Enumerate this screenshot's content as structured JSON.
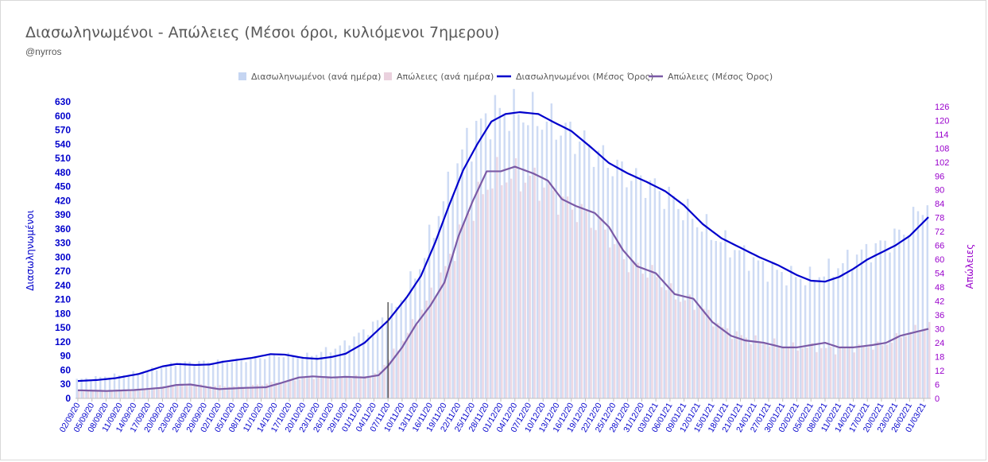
{
  "chart_data": {
    "type": "bar+line",
    "title": "Διασωληνωμένοι - Απώλειες (Μέσοι όροι, κυλιόμενοι 7ημερου)",
    "subtitle": "@nyrros",
    "ylabel_left": "Διασωληνωμένοι",
    "ylabel_right": "Απώλειες",
    "ylim_left": [
      0,
      630
    ],
    "ylim_right": [
      0,
      128
    ],
    "yticks_left": [
      0,
      30,
      60,
      90,
      120,
      150,
      180,
      210,
      240,
      270,
      300,
      330,
      360,
      390,
      420,
      450,
      480,
      510,
      540,
      570,
      600,
      630
    ],
    "yticks_right": [
      0,
      6,
      12,
      18,
      24,
      30,
      36,
      42,
      48,
      54,
      60,
      66,
      72,
      78,
      84,
      90,
      96,
      102,
      108,
      114,
      120,
      126
    ],
    "x_start": "02/09/20",
    "x_end": "02/03/21",
    "xtick_labels": [
      "02/09/20",
      "05/09/20",
      "08/09/20",
      "11/09/20",
      "14/09/20",
      "17/09/20",
      "20/09/20",
      "23/09/20",
      "26/09/20",
      "29/09/20",
      "02/10/20",
      "05/10/20",
      "08/10/20",
      "11/10/20",
      "14/10/20",
      "17/10/20",
      "20/10/20",
      "23/10/20",
      "26/10/20",
      "29/10/20",
      "01/11/20",
      "04/11/20",
      "07/11/20",
      "10/11/20",
      "13/11/20",
      "16/11/20",
      "19/11/20",
      "22/11/20",
      "25/11/20",
      "28/11/20",
      "01/12/20",
      "04/12/20",
      "07/12/20",
      "10/12/20",
      "13/12/20",
      "16/12/20",
      "19/12/20",
      "22/12/20",
      "25/12/20",
      "28/12/20",
      "31/12/20",
      "03/01/21",
      "06/01/21",
      "09/01/21",
      "12/01/21",
      "15/01/21",
      "18/01/21",
      "21/01/21",
      "24/01/21",
      "27/01/21",
      "30/01/21",
      "02/02/21",
      "05/02/21",
      "08/02/21",
      "11/02/21",
      "14/02/21",
      "17/02/21",
      "20/02/21",
      "23/02/21",
      "26/02/21",
      "01/03/21"
    ],
    "marker_date": "07/11/20",
    "series": [
      {
        "name": "Διασωληνωμένοι (ανά ημέρα)",
        "kind": "bar",
        "axis": "left",
        "color": "#c5d5f2",
        "anchors": [
          [
            "02/09/20",
            40
          ],
          [
            "16/09/20",
            55
          ],
          [
            "23/09/20",
            75
          ],
          [
            "07/10/20",
            80
          ],
          [
            "14/10/20",
            92
          ],
          [
            "21/10/20",
            90
          ],
          [
            "28/10/20",
            110
          ],
          [
            "04/11/20",
            155
          ],
          [
            "09/11/20",
            195
          ],
          [
            "14/11/20",
            280
          ],
          [
            "19/11/20",
            420
          ],
          [
            "24/11/20",
            545
          ],
          [
            "29/11/20",
            605
          ],
          [
            "03/12/20",
            610
          ],
          [
            "08/12/20",
            600
          ],
          [
            "13/12/20",
            580
          ],
          [
            "18/12/20",
            550
          ],
          [
            "23/12/20",
            510
          ],
          [
            "28/12/20",
            475
          ],
          [
            "02/01/21",
            455
          ],
          [
            "07/01/21",
            420
          ],
          [
            "12/01/21",
            375
          ],
          [
            "17/01/21",
            335
          ],
          [
            "22/01/21",
            305
          ],
          [
            "27/01/21",
            275
          ],
          [
            "01/02/21",
            260
          ],
          [
            "05/02/21",
            255
          ],
          [
            "10/02/21",
            275
          ],
          [
            "15/02/21",
            305
          ],
          [
            "20/02/21",
            325
          ],
          [
            "25/02/21",
            355
          ],
          [
            "02/03/21",
            420
          ]
        ]
      },
      {
        "name": "Απώλειες (ανά ημέρα)",
        "kind": "bar",
        "axis": "right",
        "color": "#ead1de",
        "anchors": [
          [
            "02/09/20",
            3
          ],
          [
            "16/09/20",
            4
          ],
          [
            "23/09/20",
            6
          ],
          [
            "07/10/20",
            5
          ],
          [
            "14/10/20",
            7
          ],
          [
            "21/10/20",
            9
          ],
          [
            "28/10/20",
            9
          ],
          [
            "04/11/20",
            10
          ],
          [
            "09/11/20",
            22
          ],
          [
            "14/11/20",
            38
          ],
          [
            "19/11/20",
            56
          ],
          [
            "24/11/20",
            80
          ],
          [
            "29/11/20",
            95
          ],
          [
            "03/12/20",
            96
          ],
          [
            "08/12/20",
            94
          ],
          [
            "13/12/20",
            86
          ],
          [
            "18/12/20",
            80
          ],
          [
            "23/12/20",
            72
          ],
          [
            "28/12/20",
            58
          ],
          [
            "02/01/21",
            54
          ],
          [
            "07/01/21",
            44
          ],
          [
            "12/01/21",
            40
          ],
          [
            "17/01/21",
            30
          ],
          [
            "22/01/21",
            26
          ],
          [
            "27/01/21",
            24
          ],
          [
            "01/02/21",
            22
          ],
          [
            "05/02/21",
            22
          ],
          [
            "10/02/21",
            21
          ],
          [
            "15/02/21",
            22
          ],
          [
            "20/02/21",
            23
          ],
          [
            "25/02/21",
            28
          ],
          [
            "02/03/21",
            32
          ]
        ]
      },
      {
        "name": "Διασωληνωμένοι (Μέσος Όρος)",
        "kind": "line",
        "axis": "left",
        "color": "#0000cc",
        "anchors": [
          [
            "02/09/20",
            37
          ],
          [
            "06/09/20",
            39
          ],
          [
            "10/09/20",
            43
          ],
          [
            "15/09/20",
            52
          ],
          [
            "20/09/20",
            68
          ],
          [
            "23/09/20",
            73
          ],
          [
            "27/09/20",
            71
          ],
          [
            "30/09/20",
            72
          ],
          [
            "03/10/20",
            78
          ],
          [
            "09/10/20",
            86
          ],
          [
            "13/10/20",
            94
          ],
          [
            "16/10/20",
            93
          ],
          [
            "20/10/20",
            86
          ],
          [
            "23/10/20",
            84
          ],
          [
            "26/10/20",
            88
          ],
          [
            "29/10/20",
            95
          ],
          [
            "02/11/20",
            118
          ],
          [
            "07/11/20",
            165
          ],
          [
            "11/11/20",
            215
          ],
          [
            "14/11/20",
            260
          ],
          [
            "17/11/20",
            330
          ],
          [
            "20/11/20",
            410
          ],
          [
            "23/11/20",
            485
          ],
          [
            "26/11/20",
            540
          ],
          [
            "29/11/20",
            588
          ],
          [
            "02/12/20",
            604
          ],
          [
            "05/12/20",
            608
          ],
          [
            "09/12/20",
            604
          ],
          [
            "12/12/20",
            588
          ],
          [
            "16/12/20",
            568
          ],
          [
            "20/12/20",
            535
          ],
          [
            "24/12/20",
            500
          ],
          [
            "28/12/20",
            478
          ],
          [
            "01/01/21",
            460
          ],
          [
            "05/01/21",
            440
          ],
          [
            "09/01/21",
            410
          ],
          [
            "13/01/21",
            370
          ],
          [
            "17/01/21",
            340
          ],
          [
            "21/01/21",
            320
          ],
          [
            "25/01/21",
            300
          ],
          [
            "29/01/21",
            283
          ],
          [
            "02/02/21",
            262
          ],
          [
            "05/02/21",
            250
          ],
          [
            "08/02/21",
            248
          ],
          [
            "11/02/21",
            258
          ],
          [
            "14/02/21",
            275
          ],
          [
            "17/02/21",
            295
          ],
          [
            "20/02/21",
            310
          ],
          [
            "23/02/21",
            325
          ],
          [
            "26/02/21",
            345
          ],
          [
            "02/03/21",
            385
          ]
        ]
      },
      {
        "name": "Απώλειες (Μέσος Όρος)",
        "kind": "line",
        "axis": "right",
        "color": "#7b5aa6",
        "anchors": [
          [
            "02/09/20",
            3.5
          ],
          [
            "08/09/20",
            3.2
          ],
          [
            "14/09/20",
            3.6
          ],
          [
            "20/09/20",
            4.6
          ],
          [
            "23/09/20",
            5.8
          ],
          [
            "26/09/20",
            6
          ],
          [
            "29/09/20",
            5
          ],
          [
            "02/10/20",
            4
          ],
          [
            "07/10/20",
            4.5
          ],
          [
            "12/10/20",
            4.8
          ],
          [
            "15/10/20",
            6.5
          ],
          [
            "19/10/20",
            9
          ],
          [
            "22/10/20",
            9.5
          ],
          [
            "26/10/20",
            9
          ],
          [
            "29/10/20",
            9.3
          ],
          [
            "02/11/20",
            9
          ],
          [
            "05/11/20",
            10
          ],
          [
            "07/11/20",
            14
          ],
          [
            "10/11/20",
            22
          ],
          [
            "13/11/20",
            32
          ],
          [
            "16/11/20",
            40
          ],
          [
            "19/11/20",
            50
          ],
          [
            "22/11/20",
            70
          ],
          [
            "25/11/20",
            85
          ],
          [
            "28/11/20",
            98
          ],
          [
            "01/12/20",
            98
          ],
          [
            "04/12/20",
            100
          ],
          [
            "08/12/20",
            97
          ],
          [
            "11/12/20",
            94
          ],
          [
            "14/12/20",
            86
          ],
          [
            "17/12/20",
            83
          ],
          [
            "21/12/20",
            80
          ],
          [
            "24/12/20",
            74
          ],
          [
            "27/12/20",
            64
          ],
          [
            "30/12/20",
            57
          ],
          [
            "03/01/21",
            54
          ],
          [
            "07/01/21",
            45
          ],
          [
            "11/01/21",
            43
          ],
          [
            "15/01/21",
            33
          ],
          [
            "19/01/21",
            27
          ],
          [
            "22/01/21",
            25
          ],
          [
            "26/01/21",
            24
          ],
          [
            "30/01/21",
            22
          ],
          [
            "02/02/21",
            22
          ],
          [
            "05/02/21",
            23
          ],
          [
            "08/02/21",
            24
          ],
          [
            "11/02/21",
            22
          ],
          [
            "14/02/21",
            22
          ],
          [
            "18/02/21",
            23
          ],
          [
            "21/02/21",
            24
          ],
          [
            "24/02/21",
            27
          ],
          [
            "02/03/21",
            30
          ]
        ]
      }
    ],
    "legend_position": "top-center",
    "grid": false
  }
}
